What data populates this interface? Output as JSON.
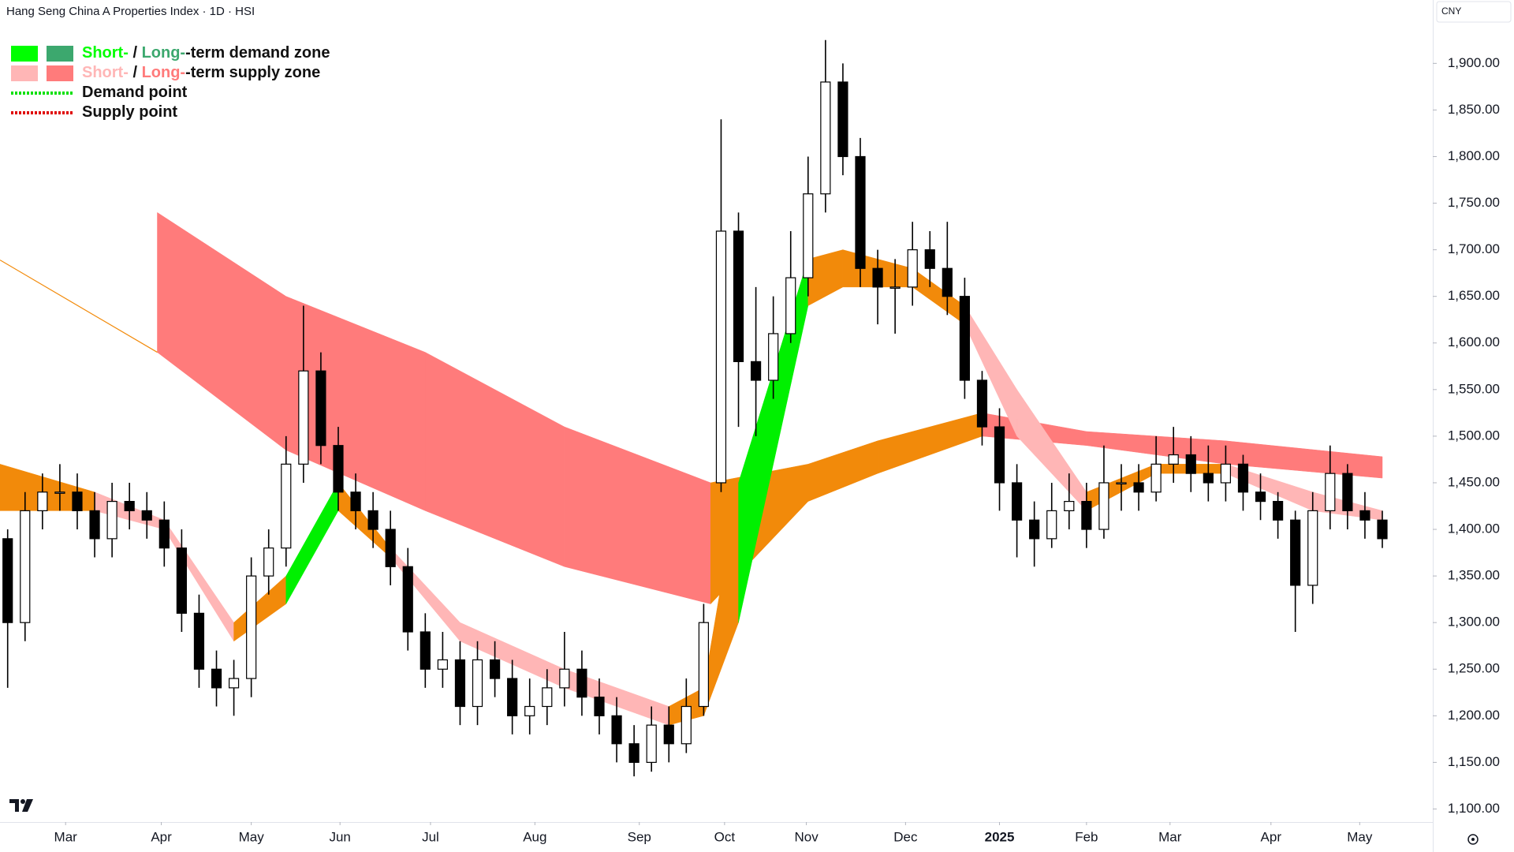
{
  "chart_data": {
    "type": "candlestick",
    "title": "Hang Seng China A Properties Index · 1D · HSI",
    "currency": "CNY",
    "xlim": [
      -0.44,
      81.9
    ],
    "xticks": [
      {
        "value": 3.33,
        "label": "Mar"
      },
      {
        "value": 8.83,
        "label": "Apr"
      },
      {
        "value": 14,
        "label": "May"
      },
      {
        "value": 19.1,
        "label": "Jun"
      },
      {
        "value": 24.3,
        "label": "Jul"
      },
      {
        "value": 30.3,
        "label": "Aug"
      },
      {
        "value": 36.3,
        "label": "Sep"
      },
      {
        "value": 41.2,
        "label": "Oct"
      },
      {
        "value": 45.9,
        "label": "Nov"
      },
      {
        "value": 51.6,
        "label": "Dec"
      },
      {
        "value": 57,
        "label": "2025"
      },
      {
        "value": 62,
        "label": "Feb"
      },
      {
        "value": 66.8,
        "label": "Mar"
      },
      {
        "value": 72.6,
        "label": "Apr"
      },
      {
        "value": 77.7,
        "label": "May"
      }
    ],
    "ylim": [
      1086,
      1968
    ],
    "yticks": [
      {
        "value": 1100,
        "label": "1,100.00"
      },
      {
        "value": 1150,
        "label": "1,150.00"
      },
      {
        "value": 1200,
        "label": "1,200.00"
      },
      {
        "value": 1250,
        "label": "1,250.00"
      },
      {
        "value": 1300,
        "label": "1,300.00"
      },
      {
        "value": 1350,
        "label": "1,350.00"
      },
      {
        "value": 1400,
        "label": "1,400.00"
      },
      {
        "value": 1450,
        "label": "1,450.00"
      },
      {
        "value": 1500,
        "label": "1,500.00"
      },
      {
        "value": 1550,
        "label": "1,550.00"
      },
      {
        "value": 1600,
        "label": "1,600.00"
      },
      {
        "value": 1650,
        "label": "1,650.00"
      },
      {
        "value": 1700,
        "label": "1,700.00"
      },
      {
        "value": 1750,
        "label": "1,750.00"
      },
      {
        "value": 1800,
        "label": "1,800.00"
      },
      {
        "value": 1850,
        "label": "1,850.00"
      },
      {
        "value": 1900,
        "label": "1,900.00"
      }
    ],
    "legend": [
      {
        "parts": [
          "Short-",
          " / ",
          "Long-",
          "-term demand zone"
        ],
        "colors": [
          "#00ff00",
          "#3ca86e"
        ]
      },
      {
        "parts": [
          "Short-",
          " / ",
          "Long-",
          "-term supply zone"
        ],
        "colors": [
          "#ffb6b6",
          "#ff7b7b"
        ]
      },
      {
        "parts": [
          "Demand point"
        ],
        "colors": [
          "#00e000"
        ]
      },
      {
        "parts": [
          "Supply point"
        ],
        "colors": [
          "#e00000"
        ]
      }
    ],
    "zones": [
      {
        "x": [
          8.6,
          16,
          24,
          32,
          40.4,
          46,
          50,
          56,
          62,
          70,
          79
        ],
        "upper": [
          1740,
          1650,
          1590,
          1510,
          1450,
          1470,
          1495,
          1525,
          1505,
          1495,
          1478
        ],
        "lower": [
          1590,
          1485,
          1420,
          1360,
          1320,
          1430,
          1460,
          1500,
          1490,
          1470,
          1455
        ],
        "colors": [
          "#ff7b7b",
          "#ff7b7b",
          "#ff7b7b",
          "#ff7b7b",
          "#f28a0a",
          "#f28a0a",
          "#f28a0a",
          "#ff7b7b",
          "#ff7b7b",
          "#ff7b7b"
        ]
      },
      {
        "x": [
          -0.44,
          5,
          9,
          13,
          16,
          19,
          22,
          26,
          32,
          38,
          40,
          42,
          46,
          48,
          52,
          55,
          58,
          62,
          66,
          70,
          75,
          79
        ],
        "upper": [
          1470,
          1440,
          1410,
          1300,
          1350,
          1450,
          1380,
          1300,
          1250,
          1210,
          1230,
          1450,
          1690,
          1700,
          1680,
          1640,
          1550,
          1440,
          1470,
          1470,
          1440,
          1420
        ],
        "lower": [
          1420,
          1420,
          1400,
          1280,
          1320,
          1420,
          1370,
          1280,
          1230,
          1190,
          1200,
          1300,
          1640,
          1660,
          1660,
          1620,
          1500,
          1420,
          1460,
          1460,
          1420,
          1410
        ],
        "colors": [
          "#f28a0a",
          "#ffb6b6",
          "#ffb6b6",
          "#f28a0a",
          "#00f000",
          "#f28a0a",
          "#ffb6b6",
          "#ffb6b6",
          "#ffb6b6",
          "#f28a0a",
          "#f28a0a",
          "#00f000",
          "#f28a0a",
          "#f28a0a",
          "#f28a0a",
          "#ffb6b6",
          "#ffb6b6",
          "#f28a0a",
          "#f28a0a",
          "#ffb6b6",
          "#ffb6b6"
        ]
      }
    ],
    "lines": [
      {
        "x": [
          -0.44,
          8.6
        ],
        "values": [
          1689,
          1590
        ],
        "color": "#f28a0a"
      }
    ],
    "candles": {
      "open": [
        1390,
        1300,
        1420,
        1440,
        1440,
        1420,
        1390,
        1430,
        1420,
        1410,
        1380,
        1310,
        1250,
        1230,
        1240,
        1350,
        1380,
        1470,
        1570,
        1490,
        1440,
        1420,
        1400,
        1360,
        1290,
        1250,
        1260,
        1210,
        1260,
        1240,
        1200,
        1210,
        1230,
        1250,
        1220,
        1200,
        1170,
        1150,
        1190,
        1170,
        1210,
        1450,
        1720,
        1580,
        1560,
        1610,
        1670,
        1760,
        1880,
        1800,
        1680,
        1660,
        1660,
        1700,
        1680,
        1650,
        1560,
        1510,
        1450,
        1410,
        1390,
        1420,
        1430,
        1400,
        1450,
        1450,
        1440,
        1470,
        1480,
        1460,
        1450,
        1470,
        1440,
        1430,
        1410,
        1340,
        1420,
        1460,
        1420,
        1410
      ],
      "high": [
        1400,
        1440,
        1460,
        1470,
        1460,
        1440,
        1450,
        1450,
        1440,
        1430,
        1400,
        1330,
        1270,
        1260,
        1370,
        1400,
        1500,
        1640,
        1590,
        1510,
        1460,
        1440,
        1420,
        1380,
        1310,
        1290,
        1280,
        1280,
        1280,
        1260,
        1240,
        1250,
        1290,
        1270,
        1240,
        1220,
        1190,
        1210,
        1210,
        1240,
        1320,
        1840,
        1740,
        1660,
        1650,
        1720,
        1800,
        1925,
        1900,
        1820,
        1700,
        1690,
        1730,
        1720,
        1730,
        1670,
        1570,
        1530,
        1470,
        1430,
        1450,
        1460,
        1450,
        1490,
        1470,
        1470,
        1500,
        1510,
        1500,
        1490,
        1490,
        1480,
        1460,
        1440,
        1420,
        1440,
        1490,
        1470,
        1440,
        1420
      ],
      "low": [
        1230,
        1280,
        1400,
        1420,
        1400,
        1370,
        1370,
        1400,
        1390,
        1360,
        1290,
        1230,
        1210,
        1200,
        1220,
        1330,
        1360,
        1450,
        1470,
        1420,
        1400,
        1380,
        1340,
        1270,
        1230,
        1230,
        1190,
        1190,
        1220,
        1180,
        1180,
        1190,
        1210,
        1200,
        1180,
        1150,
        1135,
        1140,
        1150,
        1160,
        1200,
        1440,
        1510,
        1500,
        1540,
        1600,
        1650,
        1740,
        1780,
        1660,
        1620,
        1610,
        1640,
        1660,
        1630,
        1540,
        1490,
        1420,
        1370,
        1360,
        1380,
        1400,
        1380,
        1390,
        1420,
        1420,
        1430,
        1450,
        1440,
        1430,
        1430,
        1420,
        1410,
        1390,
        1290,
        1320,
        1400,
        1400,
        1390,
        1380
      ],
      "close": [
        1300,
        1420,
        1440,
        1440,
        1420,
        1390,
        1430,
        1420,
        1410,
        1380,
        1310,
        1250,
        1230,
        1240,
        1350,
        1380,
        1470,
        1570,
        1490,
        1440,
        1420,
        1400,
        1360,
        1290,
        1250,
        1260,
        1210,
        1260,
        1240,
        1200,
        1210,
        1230,
        1250,
        1220,
        1200,
        1170,
        1150,
        1190,
        1170,
        1210,
        1300,
        1720,
        1580,
        1560,
        1610,
        1670,
        1760,
        1880,
        1800,
        1680,
        1660,
        1660,
        1700,
        1680,
        1650,
        1560,
        1510,
        1450,
        1410,
        1390,
        1420,
        1430,
        1400,
        1450,
        1450,
        1440,
        1470,
        1480,
        1460,
        1450,
        1470,
        1440,
        1430,
        1410,
        1340,
        1420,
        1460,
        1420,
        1410,
        1390
      ]
    }
  }
}
